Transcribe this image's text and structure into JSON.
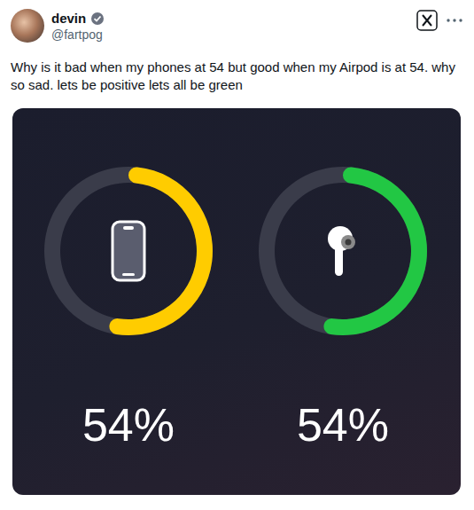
{
  "post": {
    "name": "devin",
    "handle": "@fartpog",
    "text": "Why is it bad when my phones at 54 but good when my Airpod is at 54. why so sad. lets be positive lets all be green"
  },
  "chart_data": [
    {
      "type": "radial_bar",
      "values": [
        54
      ],
      "value_labels": [
        "54%"
      ],
      "data_labels": true,
      "color": "#ffcc00",
      "ylim": [
        0,
        100
      ],
      "tick_labels": false
    },
    {
      "type": "radial_bar",
      "values": [
        54
      ],
      "value_labels": [
        "54%"
      ],
      "data_labels": true,
      "color": "#22c744",
      "ylim": [
        0,
        100
      ],
      "tick_labels": false
    }
  ]
}
